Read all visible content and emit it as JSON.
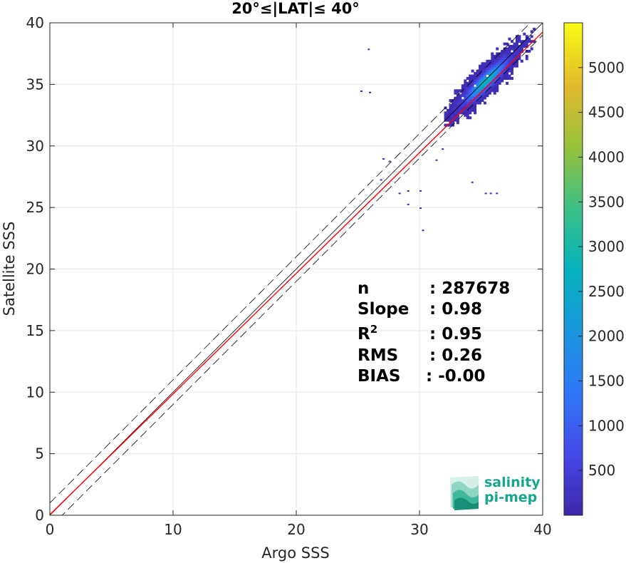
{
  "chart_data": {
    "type": "heatmap",
    "title": "20°≤|LAT|≤ 40°",
    "xlabel": "Argo SSS",
    "ylabel": "Satellite SSS",
    "xlim": [
      0,
      40
    ],
    "ylim": [
      0,
      40
    ],
    "xticks": [
      "0",
      "10",
      "20",
      "30",
      "40"
    ],
    "yticks": [
      "0",
      "5",
      "10",
      "15",
      "20",
      "25",
      "30",
      "35",
      "40"
    ],
    "grid": true,
    "colorbar": {
      "min": 0,
      "max": 5500,
      "ticks": [
        "500",
        "1000",
        "1500",
        "2000",
        "2500",
        "3000",
        "3500",
        "4000",
        "4500",
        "5000"
      ],
      "colormap": "parula"
    },
    "density_cloud": {
      "center": [
        35.3,
        35.2
      ],
      "main_extent": {
        "argo_sss": [
          32.5,
          40
        ],
        "satellite_sss": [
          31.0,
          40
        ]
      },
      "peak_count": 5400,
      "outliers": [
        [
          25.8,
          37.9
        ],
        [
          25.2,
          34.5
        ],
        [
          25.9,
          34.4
        ],
        [
          27.0,
          29.0
        ],
        [
          27.5,
          28.8
        ],
        [
          26.8,
          27.3
        ],
        [
          28.3,
          26.2
        ],
        [
          29.0,
          26.4
        ],
        [
          30.0,
          26.4
        ],
        [
          29.0,
          25.3
        ],
        [
          30.0,
          25.0
        ],
        [
          30.2,
          23.2
        ],
        [
          31.3,
          28.9
        ],
        [
          31.8,
          29.8
        ],
        [
          35.7,
          26.2
        ],
        [
          35.3,
          26.2
        ],
        [
          34.2,
          27.1
        ],
        [
          36.2,
          26.2
        ]
      ]
    },
    "lines": [
      {
        "name": "identity",
        "color": "#000000",
        "style": "solid",
        "intercept": 0,
        "slope": 1
      },
      {
        "name": "identity + 1",
        "color": "#000000",
        "style": "dashed",
        "intercept": 1,
        "slope": 1
      },
      {
        "name": "identity - 1",
        "color": "#000000",
        "style": "dashed",
        "intercept": -1,
        "slope": 1
      },
      {
        "name": "regression",
        "color": "#ff0000",
        "style": "solid",
        "intercept": 0.05,
        "slope": 0.98
      }
    ],
    "stats": {
      "n": {
        "label": "n",
        "value": ": 287678"
      },
      "slope": {
        "label": "Slope",
        "value": ": 0.98"
      },
      "r2": {
        "label": "R",
        "sup": "2",
        "value": ": 0.95"
      },
      "rms": {
        "label": "RMS",
        "value": ": 0.26"
      },
      "bias": {
        "label": "BIAS",
        "value": ": -0.00"
      }
    }
  },
  "logo": {
    "line1": "salinity",
    "line2": "pi-mep"
  }
}
